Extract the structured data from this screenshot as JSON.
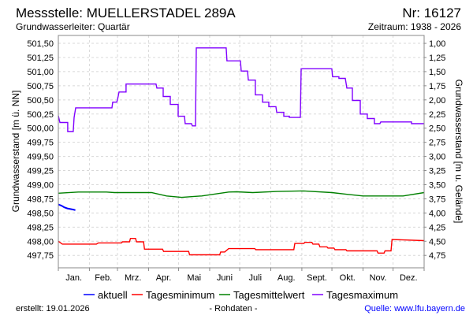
{
  "header": {
    "title": "Messstelle: MUELLERSTADEL 289A",
    "number": "Nr: 16127",
    "aquifer": "Grundwasserleiter: Quartär",
    "period": "Zeitraum: 1938 - 2026"
  },
  "footer": {
    "created": "erstellt:  19.01.2026",
    "raw": "- Rohdaten -",
    "source": "Quelle: www.lfu.bayern.de"
  },
  "colors": {
    "aktuell": "#0000ff",
    "min": "#ff0000",
    "mittel": "#008000",
    "max": "#8000ff",
    "grid": "#d8d8d8"
  },
  "chart_data": {
    "type": "line",
    "title": "Messstelle: MUELLERSTADEL 289A",
    "xlabel": "",
    "ylabel": "Grundwasserstand [m ü. NN]",
    "ylabel_right": "Grundwasserstand [m u. Gelände]",
    "ylim": [
      497.53,
      501.64
    ],
    "xlim": [
      0,
      365
    ],
    "grid": true,
    "legend_position": "bottom",
    "month_labels": [
      "Jan.",
      "Feb.",
      "Mrz.",
      "Apr.",
      "Mai",
      "Juni",
      "Juli",
      "Aug.",
      "Sept.",
      "Okt.",
      "Nov.",
      "Dez."
    ],
    "month_starts": [
      0,
      31,
      59,
      90,
      120,
      151,
      181,
      212,
      243,
      273,
      304,
      334,
      365
    ],
    "y_ticks": [
      "501,50",
      "501,25",
      "501,00",
      "500,75",
      "500,50",
      "500,25",
      "500,00",
      "499,75",
      "499,50",
      "499,25",
      "499,00",
      "498,75",
      "498,50",
      "498,25",
      "498,00",
      "497,75"
    ],
    "y_tick_values": [
      501.5,
      501.25,
      501.0,
      500.75,
      500.5,
      500.25,
      500.0,
      499.75,
      499.5,
      499.25,
      499.0,
      498.75,
      498.5,
      498.25,
      498.0,
      497.75
    ],
    "y_ticks_right": [
      "1,00",
      "1,25",
      "1,50",
      "1,75",
      "2,00",
      "2,25",
      "2,50",
      "2,75",
      "3,00",
      "3,25",
      "3,50",
      "3,75",
      "4,00",
      "4,25",
      "4,50",
      "4,75"
    ],
    "series": [
      {
        "name": "aktuell",
        "key": "aktuell",
        "x": [
          0,
          3,
          6,
          9,
          12,
          15,
          17
        ],
        "values": [
          498.65,
          498.63,
          498.6,
          498.58,
          498.57,
          498.56,
          498.55
        ]
      },
      {
        "name": "Tagesminimum",
        "key": "min",
        "step": true,
        "x": [
          0,
          4,
          38,
          40,
          63,
          64,
          71,
          72,
          77,
          78,
          85,
          86,
          104,
          105,
          130,
          131,
          161,
          162,
          166,
          170,
          196,
          197,
          235,
          236,
          245,
          246,
          253,
          254,
          260,
          261,
          268,
          269,
          275,
          276,
          287,
          288,
          318,
          319,
          325,
          326,
          332,
          333,
          365
        ],
        "values": [
          498.0,
          497.95,
          497.95,
          497.97,
          497.97,
          497.99,
          497.99,
          498.05,
          498.05,
          497.99,
          497.99,
          497.86,
          497.86,
          497.82,
          497.82,
          497.76,
          497.76,
          497.81,
          497.81,
          497.87,
          497.87,
          497.85,
          497.85,
          497.96,
          497.96,
          497.98,
          497.98,
          497.95,
          497.95,
          497.9,
          497.9,
          497.88,
          497.88,
          497.85,
          497.85,
          497.83,
          497.83,
          497.79,
          497.79,
          497.83,
          497.83,
          498.03,
          498.01
        ]
      },
      {
        "name": "Tagesmittelwert",
        "key": "mittel",
        "x": [
          0,
          20,
          48,
          56,
          93,
          108,
          123,
          143,
          170,
          178,
          194,
          218,
          245,
          273,
          288,
          304,
          320,
          344,
          365
        ],
        "values": [
          498.85,
          498.87,
          498.87,
          498.86,
          498.86,
          498.8,
          498.775,
          498.8,
          498.87,
          498.875,
          498.86,
          498.88,
          498.89,
          498.86,
          498.83,
          498.8,
          498.8,
          498.8,
          498.86
        ]
      },
      {
        "name": "Tagesmaximum",
        "key": "max",
        "x": [
          0,
          1.6,
          9.4,
          9.4,
          14.9,
          15.7,
          17.3,
          53.5,
          54.3,
          58.2,
          59,
          60.6,
          67.6,
          67.6,
          97.5,
          98.3,
          104.6,
          104.6,
          111.7,
          111.7,
          119.6,
          119.6,
          125.9,
          126.6,
          132.9,
          133.7,
          136.9,
          137.7,
          167.5,
          168.3,
          181.7,
          182.5,
          188.8,
          189.6,
          196.6,
          196.6,
          203.7,
          203.7,
          210,
          210,
          217.1,
          217.9,
          225,
          225,
          230.5,
          230.5,
          241.5,
          242.3,
          272.9,
          273.7,
          280,
          280,
          286.3,
          287.9,
          293.4,
          293.4,
          301.3,
          301.3,
          308.3,
          308.3,
          315.4,
          315.4,
          320.9,
          321.7,
          352.4,
          352.4,
          365
        ],
        "values": [
          500.22,
          500.1,
          500.1,
          499.94,
          499.94,
          500.19,
          500.36,
          500.36,
          500.46,
          500.46,
          500.5,
          500.64,
          500.64,
          500.78,
          500.78,
          500.71,
          500.71,
          500.56,
          500.56,
          500.42,
          500.42,
          500.21,
          500.21,
          500.08,
          500.08,
          500.04,
          500.04,
          501.42,
          501.42,
          501.19,
          501.19,
          501.01,
          501.01,
          500.85,
          500.85,
          500.59,
          500.59,
          500.46,
          500.46,
          500.38,
          500.38,
          500.28,
          500.28,
          500.21,
          500.21,
          500.19,
          500.19,
          501.05,
          501.05,
          500.91,
          500.91,
          500.88,
          500.88,
          500.71,
          500.71,
          500.49,
          500.49,
          500.25,
          500.25,
          500.17,
          500.17,
          500.08,
          500.08,
          500.11,
          500.11,
          500.08,
          500.08
        ]
      }
    ]
  }
}
